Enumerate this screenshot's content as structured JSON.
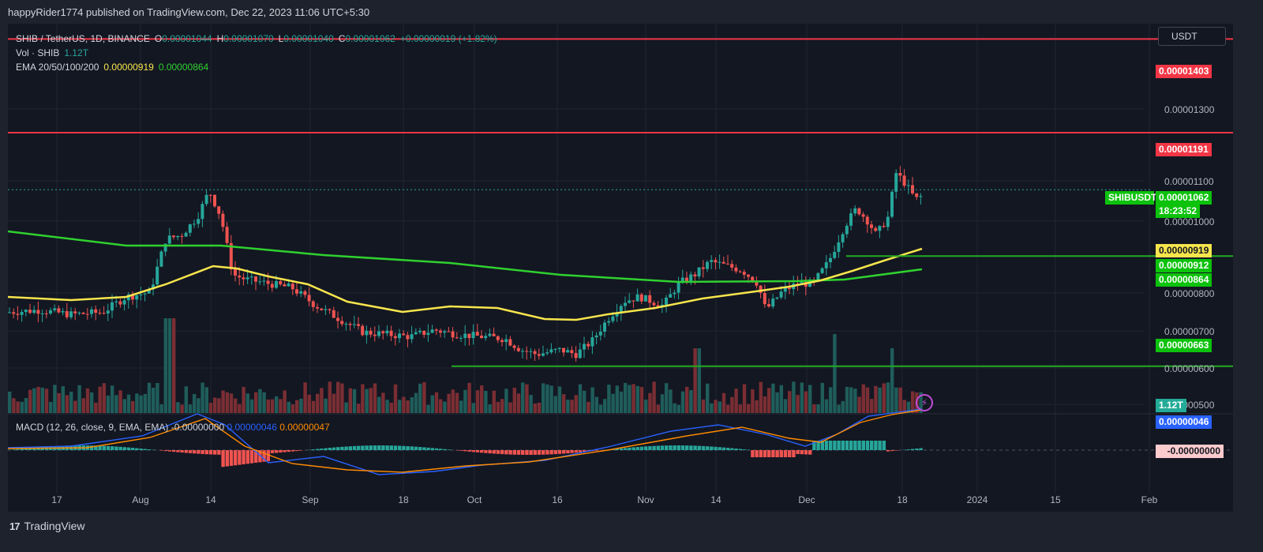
{
  "header": {
    "publish_text": "happyRider1774 published on TradingView.com, Dec 22, 2023 11:06 UTC+5:30"
  },
  "legend": {
    "symbol": "SHIB / TetherUS, 1D, BINANCE",
    "ohlc": {
      "o_label": "O",
      "o": "0.00001044",
      "h_label": "H",
      "h": "0.00001070",
      "l_label": "L",
      "l": "0.00001040",
      "c_label": "C",
      "c": "0.00001062",
      "change": "+0.00000019 (+1.82%)"
    },
    "vol_label": "Vol · SHIB",
    "vol_value": "1.12T",
    "ema_label": "EMA 20/50/100/200",
    "ema_v1": "0.00000919",
    "ema_v2": "0.00000864"
  },
  "macd_legend": {
    "label": "MACD (12, 26, close, 9, EMA, EMA)",
    "hist": "-0.00000000",
    "macd": "0.00000046",
    "signal": "0.00000047"
  },
  "currency_button": "USDT",
  "footer": {
    "brand": "TradingView",
    "logo_glyph": "17"
  },
  "colors": {
    "bg": "#131722",
    "up": "#26a69a",
    "down": "#ef5350",
    "resistance": "#f23645",
    "support": "#22ab22",
    "ema20": "#f7e54c",
    "ema200": "#2fd12f",
    "macd": "#2962ff",
    "signal": "#ff8b00"
  },
  "price_tags": {
    "r1": "0.00001403",
    "r2": "0.00001191",
    "symbol": "SHIBUSDT",
    "last": "0.00001062",
    "countdown": "18:23:52",
    "ema20": "0.00000919",
    "s1": "0.00000912",
    "ema200": "0.00000864",
    "s2": "0.00000663",
    "vol": "1.12T",
    "macd": "0.00000046",
    "hist": "-0.00000000"
  },
  "chart_data": {
    "type": "candlestick",
    "y_ticks": [
      "0.00001300",
      "0.00001100",
      "0.00001000",
      "0.00000800",
      "0.00000700",
      "0.00000600",
      "0.00000500"
    ],
    "x_ticks": [
      "17",
      "Aug",
      "14",
      "Sep",
      "18",
      "Oct",
      "16",
      "Nov",
      "14",
      "Dec",
      "18",
      "2024",
      "15",
      "Feb"
    ],
    "ylim": [
      4.9e-06,
      1.51e-05
    ],
    "resistance_levels": [
      1.403e-05,
      1.191e-05
    ],
    "support_levels": [
      9.12e-06,
      6.63e-06
    ],
    "current_price": 1.062e-05,
    "ema20_last": 9.19e-06,
    "ema200_last": 8.64e-06,
    "volume_last": "1.12T",
    "macd": {
      "macd": 4.6e-07,
      "signal": 4.7e-07,
      "hist": -0.0
    }
  }
}
